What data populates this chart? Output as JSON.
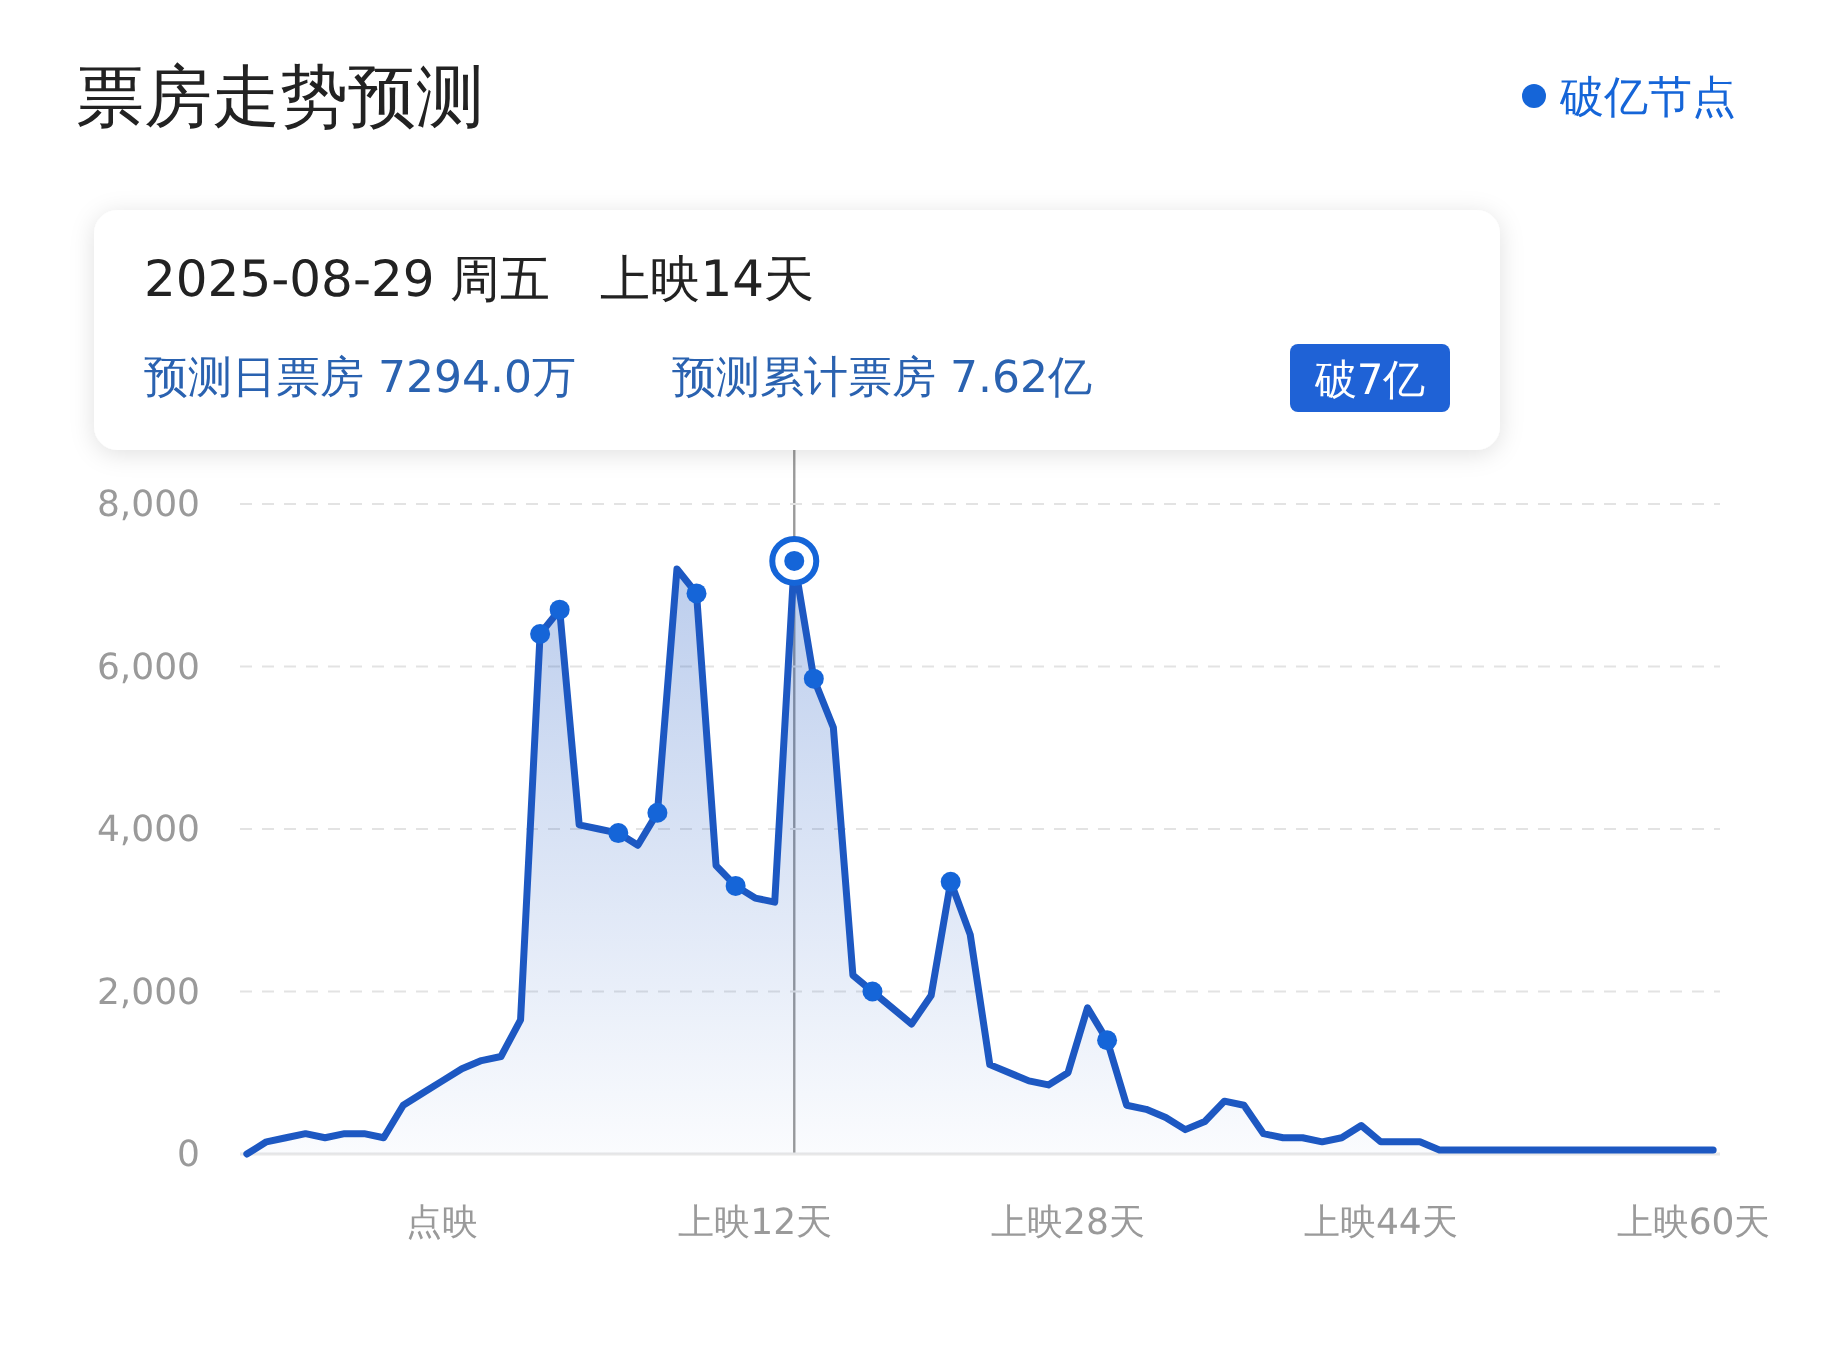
{
  "chart_data": {
    "type": "area",
    "title": "票房走势预测",
    "categories": [
      null,
      null,
      null,
      null,
      null,
      null,
      null,
      null,
      null,
      null,
      "点映",
      null,
      null,
      null,
      null,
      null,
      null,
      null,
      null,
      null,
      null,
      null,
      null,
      null,
      null,
      null,
      "上映12天",
      null,
      null,
      null,
      null,
      null,
      null,
      null,
      null,
      null,
      null,
      null,
      null,
      null,
      null,
      null,
      "上映28天",
      null,
      null,
      null,
      null,
      null,
      null,
      null,
      null,
      null,
      null,
      null,
      null,
      null,
      null,
      null,
      "上映44天",
      null,
      null,
      null,
      null,
      null,
      null,
      null,
      null,
      null,
      null,
      null,
      null,
      null,
      null,
      null,
      "上映60天",
      null
    ],
    "series": [
      {
        "color": "#1d58c2",
        "values": [
          0,
          150,
          200,
          250,
          200,
          250,
          250,
          200,
          600,
          750,
          900,
          1050,
          1150,
          1200,
          1650,
          6400,
          6700,
          4050,
          4000,
          3950,
          3800,
          4200,
          7200,
          6900,
          3550,
          3300,
          3150,
          3100,
          7300,
          5850,
          5250,
          2200,
          2000,
          1800,
          1600,
          1950,
          3350,
          2700,
          1100,
          1000,
          900,
          850,
          1000,
          1800,
          1400,
          600,
          550,
          450,
          300,
          400,
          650,
          600,
          250,
          200,
          200,
          150,
          200,
          350,
          150,
          150,
          150,
          50,
          50,
          50,
          50,
          50,
          50,
          50,
          50,
          50,
          50,
          50,
          50,
          50,
          50,
          50
        ]
      },
      {
        "type": "scatter",
        "name": "破亿节点",
        "color": "#1565d8",
        "marker": "circle",
        "values": [
          null,
          null,
          null,
          null,
          null,
          null,
          null,
          null,
          null,
          null,
          null,
          null,
          null,
          null,
          null,
          6400,
          6700,
          null,
          null,
          3950,
          null,
          4200,
          null,
          6900,
          null,
          3300,
          null,
          null,
          null,
          5850,
          null,
          null,
          2000,
          null,
          null,
          null,
          3350,
          null,
          null,
          null,
          null,
          null,
          null,
          null,
          1400,
          null,
          null,
          null,
          null,
          null,
          null,
          null,
          null,
          null,
          null,
          null,
          null,
          null,
          null,
          null,
          null,
          null,
          null,
          null,
          null,
          null,
          null,
          null,
          null,
          null,
          null,
          null,
          null,
          null,
          null,
          null
        ]
      },
      {
        "type": "scatter",
        "color": "#1565d8",
        "marker": "circle",
        "values": [
          null,
          null,
          null,
          null,
          null,
          null,
          null,
          null,
          null,
          null,
          null,
          null,
          null,
          null,
          null,
          null,
          null,
          null,
          null,
          null,
          null,
          null,
          null,
          null,
          null,
          null,
          null,
          null,
          7300,
          null,
          null,
          null,
          null,
          null,
          null,
          null,
          null,
          null,
          null,
          null,
          null,
          null,
          null,
          null,
          null,
          null,
          null,
          null,
          null,
          null,
          null,
          null,
          null,
          null,
          null,
          null,
          null,
          null,
          null,
          null,
          null,
          null,
          null,
          null,
          null,
          null,
          null,
          null,
          null,
          null,
          null,
          null,
          null,
          null,
          null,
          null
        ]
      }
    ],
    "ylim": [
      0,
      8000
    ],
    "yticks": [
      0,
      {
        "value": 2000,
        "label": "2,000"
      },
      {
        "value": 4000,
        "label": "4,000"
      },
      {
        "value": 6000,
        "label": "6,000"
      },
      {
        "value": 8000,
        "label": "8,000"
      }
    ],
    "grid": "y",
    "legend": "top right",
    "annotations": [
      "2025-08-29 周五　上映14天",
      "预测日票房 7294.0万",
      "预测累计票房 7.62亿",
      "破7亿"
    ]
  }
}
